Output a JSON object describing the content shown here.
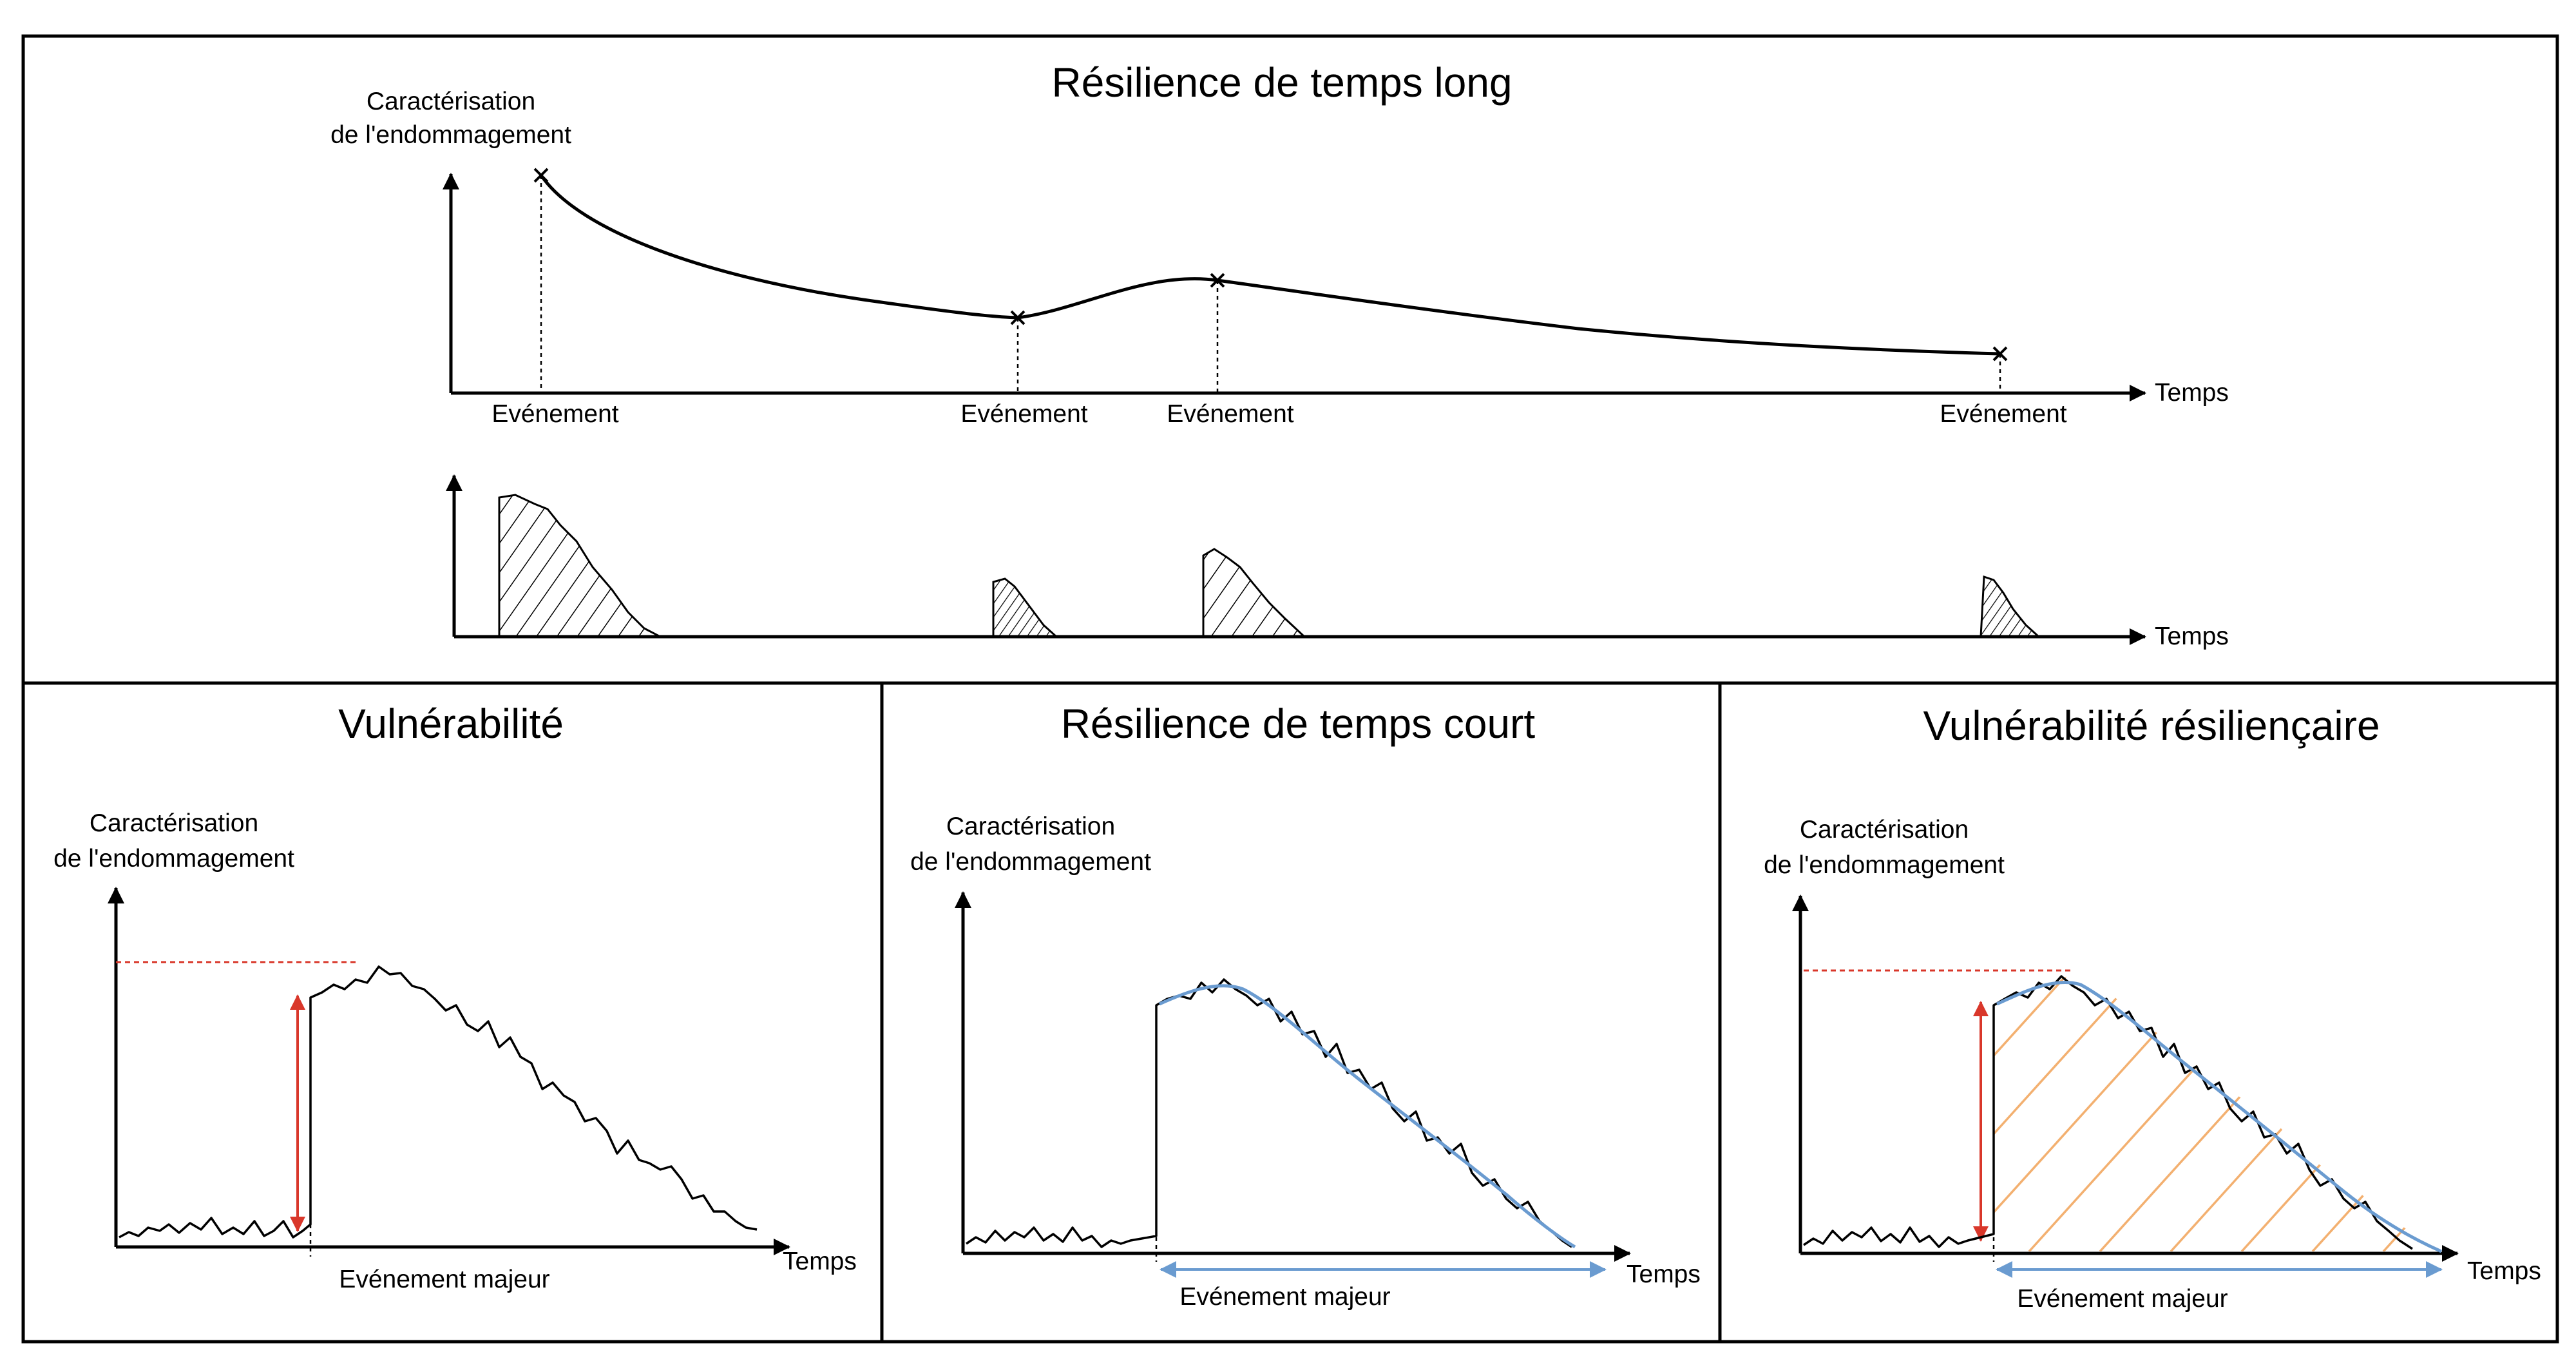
{
  "top": {
    "title": "Résilience de temps long",
    "ylabel_line1": "Caractérisation",
    "ylabel_line2": "de l'endommagement",
    "xlabel": "Temps",
    "xlabel2": "Temps",
    "events": [
      "Evénement",
      "Evénement",
      "Evénement",
      "Evénement"
    ]
  },
  "panels": [
    {
      "title": "Vulnérabilité",
      "ylabel_line1": "Caractérisation",
      "ylabel_line2": "de l'endommagement",
      "xlabel": "Temps",
      "event": "Evénement majeur"
    },
    {
      "title": "Résilience de temps court",
      "ylabel_line1": "Caractérisation",
      "ylabel_line2": "de l'endommagement",
      "xlabel": "Temps",
      "event": "Evénement majeur"
    },
    {
      "title": "Vulnérabilité résiliençaire",
      "ylabel_line1": "Caractérisation",
      "ylabel_line2": "de l'endommagement",
      "xlabel": "Temps",
      "event": "Evénement majeur"
    }
  ],
  "colors": {
    "red": "#d9372a",
    "blue": "#6a9bd0",
    "orange": "#f3b070"
  }
}
